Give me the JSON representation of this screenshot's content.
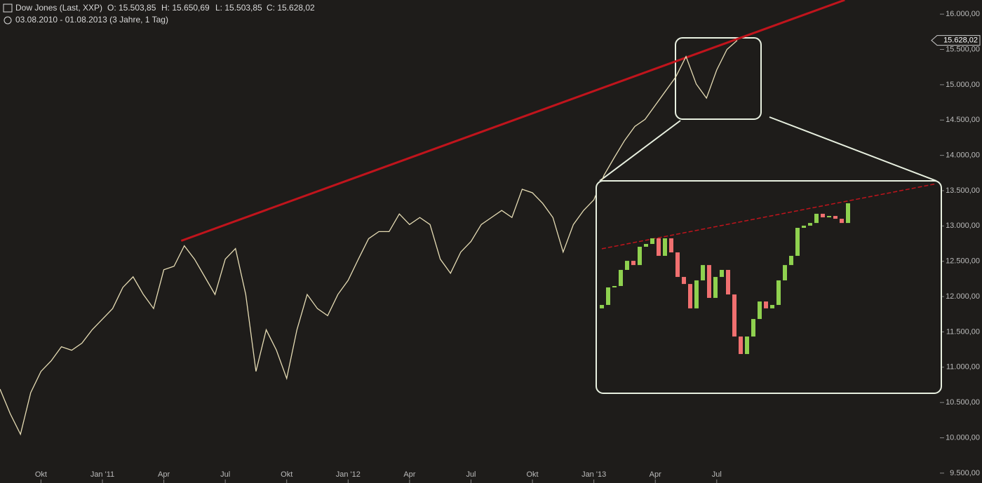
{
  "chart_data": [
    {
      "type": "line",
      "title": "Dow Jones (Last, XXP)",
      "ohlc_labels": [
        "O: 15.503,85",
        "H: 15.650,69",
        "L: 15.503,85",
        "C: 15.628,02"
      ],
      "subtitle": "03.08.2010 - 01.08.2013 (3 Jahre, 1 Tag)",
      "color": "#e6dcb4",
      "values": [
        10690,
        10340,
        10050,
        10640,
        10940,
        11090,
        11290,
        11240,
        11340,
        11530,
        11680,
        11830,
        12130,
        12280,
        12030,
        11830,
        12380,
        12430,
        12720,
        12530,
        12280,
        12030,
        12530,
        12680,
        12030,
        10940,
        11530,
        11240,
        10840,
        11530,
        12030,
        11830,
        11730,
        12030,
        12230,
        12530,
        12820,
        12920,
        12920,
        13170,
        13020,
        13120,
        13020,
        12530,
        12330,
        12630,
        12780,
        13020,
        13120,
        13220,
        13120,
        13520,
        13470,
        13320,
        13120,
        12630,
        13020,
        13220,
        13370,
        13720,
        13970,
        14210,
        14410,
        14510,
        14710,
        14910,
        15110,
        15400,
        15010,
        14810,
        15210,
        15500,
        15628.02
      ],
      "xlim": [
        0,
        72
      ],
      "xticks": [
        {
          "value": 4,
          "label": "Okt"
        },
        {
          "value": 10,
          "label": "Jan '11"
        },
        {
          "value": 16,
          "label": "Apr"
        },
        {
          "value": 22,
          "label": "Jul"
        },
        {
          "value": 28,
          "label": "Okt"
        },
        {
          "value": 34,
          "label": "Jan '12"
        },
        {
          "value": 40,
          "label": "Apr"
        },
        {
          "value": 46,
          "label": "Jul"
        },
        {
          "value": 52,
          "label": "Okt"
        },
        {
          "value": 58,
          "label": "Jan '13"
        },
        {
          "value": 64,
          "label": "Apr"
        },
        {
          "value": 70,
          "label": "Jul"
        }
      ],
      "ylim": [
        9360,
        16200
      ],
      "yticks": [
        {
          "value": 9500,
          "label": "9.500,00"
        },
        {
          "value": 10000,
          "label": "10.000,00"
        },
        {
          "value": 10500,
          "label": "10.500,00"
        },
        {
          "value": 11000,
          "label": "11.000,00"
        },
        {
          "value": 11500,
          "label": "11.500,00"
        },
        {
          "value": 12000,
          "label": "12.000,00"
        },
        {
          "value": 12500,
          "label": "12.500,00"
        },
        {
          "value": 13000,
          "label": "13.000,00"
        },
        {
          "value": 13500,
          "label": "13.500,00"
        },
        {
          "value": 14000,
          "label": "14.000,00"
        },
        {
          "value": 14500,
          "label": "14.500,00"
        },
        {
          "value": 15000,
          "label": "15.000,00"
        },
        {
          "value": 15500,
          "label": "15.500,00"
        },
        {
          "value": 16000,
          "label": "16.000,00"
        }
      ],
      "last_price": {
        "value": 15628.02,
        "label": "15.628,02"
      },
      "trendline": {
        "x": [
          17.7,
          82.5
        ],
        "values": [
          12790,
          16200
        ],
        "color": "#c0141c"
      }
    },
    {
      "type": "candlestick",
      "up_color": "#8fd14f",
      "down_color": "#f07070",
      "open": [
        14966,
        14988,
        15100,
        15109,
        15212,
        15270,
        15243,
        15360,
        15378,
        15414,
        15302,
        15414,
        15324,
        15167,
        15122,
        14966,
        15145,
        15243,
        15033,
        15167,
        15212,
        15055,
        14786,
        14674,
        14786,
        14898,
        15010,
        14966,
        14988,
        15145,
        15243,
        15302,
        15481,
        15495,
        15512,
        15571,
        15548,
        15557,
        15539,
        15512
      ],
      "close": [
        14988,
        15100,
        15109,
        15212,
        15270,
        15243,
        15360,
        15378,
        15414,
        15302,
        15414,
        15324,
        15167,
        15122,
        14966,
        15145,
        15243,
        15033,
        15167,
        15212,
        15055,
        14786,
        14674,
        14786,
        14898,
        15010,
        14966,
        14988,
        15145,
        15243,
        15302,
        15481,
        15495,
        15512,
        15571,
        15548,
        15557,
        15539,
        15512,
        15638
      ],
      "ylim": [
        14450,
        15750
      ],
      "trendline": {
        "x": [
          0,
          53
        ],
        "values": [
          15347,
          15763
        ],
        "color": "#c0141c"
      }
    }
  ]
}
